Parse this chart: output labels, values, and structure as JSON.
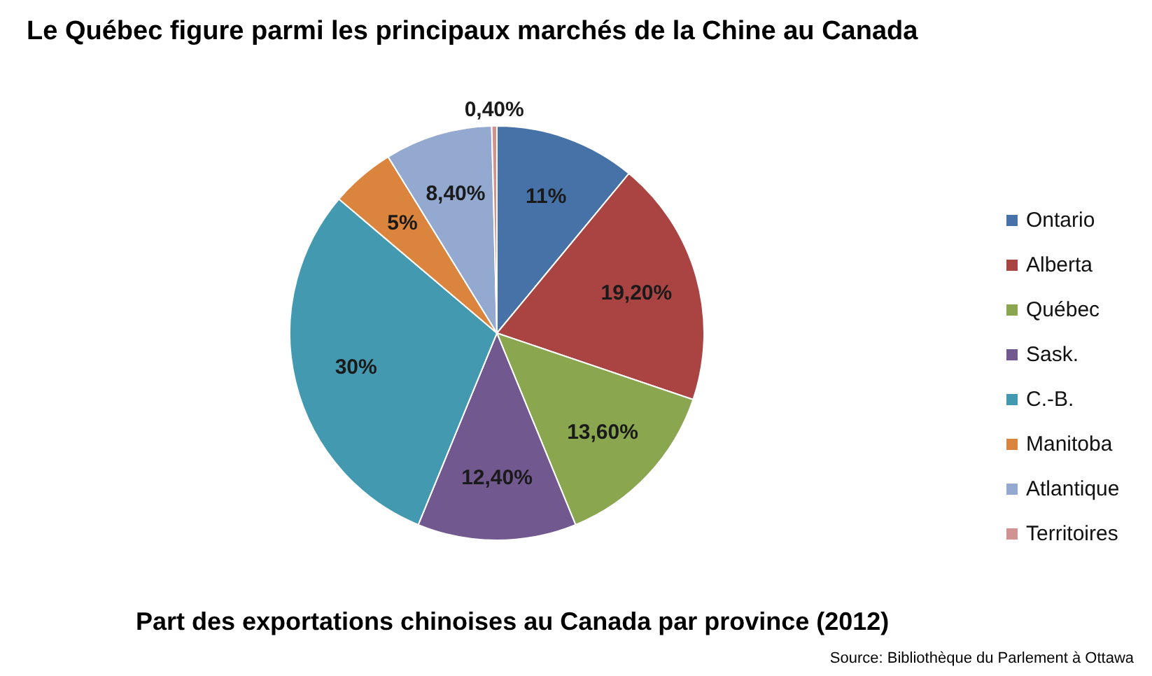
{
  "chart_data": {
    "type": "pie",
    "title": "Le Québec figure parmi les principaux marchés de la Chine au Canada",
    "subtitle": "Part des exportations chinoises au Canada par province (2012)",
    "annotations": [
      "Source: Bibliothèque du Parlement à Ottawa"
    ],
    "categories": [
      "Ontario",
      "Alberta",
      "Québec",
      "Sask.",
      "C.-B.",
      "Manitoba",
      "Atlantique",
      "Territoires"
    ],
    "values": [
      11,
      19.2,
      13.6,
      12.4,
      30,
      5,
      8.4,
      0.4
    ],
    "value_labels": [
      "11%",
      "19,20%",
      "13,60%",
      "12,40%",
      "30%",
      "5%",
      "8,40%",
      "0,40%"
    ],
    "colors": [
      "#4672a8",
      "#a94442",
      "#8aa64f",
      "#71588f",
      "#4299b0",
      "#db843d",
      "#93a9d0",
      "#d09391"
    ],
    "legend": "right"
  }
}
